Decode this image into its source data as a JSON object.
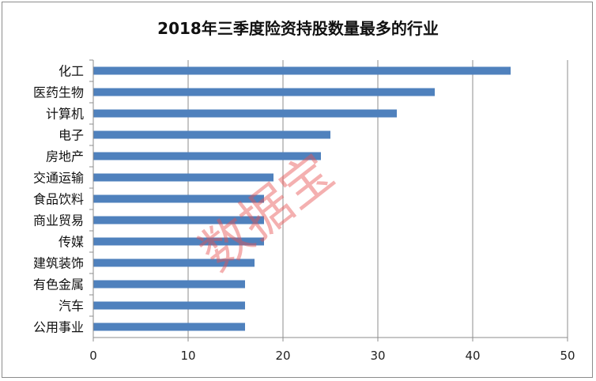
{
  "chart_data": {
    "type": "bar",
    "orientation": "horizontal",
    "title": "2018年三季度险资持股数量最多的行业",
    "categories": [
      "化工",
      "医药生物",
      "计算机",
      "电子",
      "房地产",
      "交通运输",
      "食品饮料",
      "商业贸易",
      "传媒",
      "建筑装饰",
      "有色金属",
      "汽车",
      "公用事业"
    ],
    "values": [
      44,
      36,
      32,
      25,
      24,
      19,
      18,
      18,
      18,
      17,
      16,
      16,
      16
    ],
    "xlim": [
      0,
      50
    ],
    "xticks": [
      "0",
      "10",
      "20",
      "30",
      "40",
      "50"
    ],
    "grid": true,
    "bar_color": "#4f81bd",
    "grid_color": "#8c8c8c"
  },
  "watermark": "数据宝"
}
